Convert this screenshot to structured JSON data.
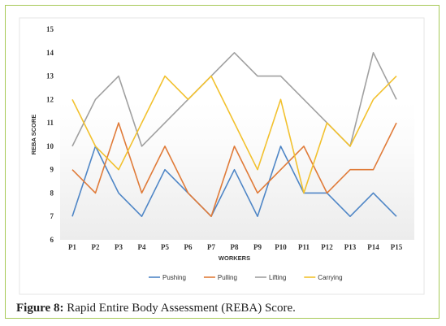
{
  "caption": {
    "label": "Figure 8:",
    "text": " Rapid Entire Body Assessment (REBA) Score."
  },
  "chart_data": {
    "type": "line",
    "title": "",
    "xlabel": "WORKERS",
    "ylabel": "REBA SCORE",
    "ylim": [
      6,
      15
    ],
    "yticks": [
      "6",
      "7",
      "8",
      "9",
      "10",
      "11",
      "12",
      "13",
      "14",
      "15"
    ],
    "categories": [
      "P1",
      "P2",
      "P3",
      "P4",
      "P5",
      "P6",
      "P7",
      "P8",
      "P9",
      "P10",
      "P11",
      "P12",
      "P13",
      "P14",
      "P15"
    ],
    "grid": false,
    "legend_position": "bottom",
    "series": [
      {
        "name": "Pushing",
        "color": "#4f86c6",
        "values": [
          7,
          10,
          8,
          7,
          9,
          8,
          7,
          9,
          7,
          10,
          8,
          8,
          7,
          8,
          7
        ]
      },
      {
        "name": "Pulling",
        "color": "#e07b39",
        "values": [
          9,
          8,
          11,
          8,
          10,
          8,
          7,
          10,
          8,
          9,
          10,
          8,
          9,
          9,
          11
        ]
      },
      {
        "name": "Lifting",
        "color": "#a0a0a0",
        "values": [
          10,
          12,
          13,
          10,
          11,
          12,
          13,
          14,
          13,
          13,
          12,
          11,
          10,
          14,
          12
        ]
      },
      {
        "name": "Carrying",
        "color": "#f2c12e",
        "values": [
          12,
          10,
          9,
          11,
          13,
          12,
          13,
          11,
          9,
          12,
          8,
          11,
          10,
          12,
          13
        ]
      }
    ]
  }
}
